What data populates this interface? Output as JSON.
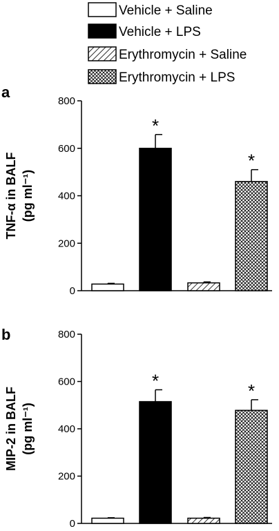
{
  "legend": [
    {
      "label": "Vehicle + Saline",
      "pattern": "white"
    },
    {
      "label": "Vehicle + LPS",
      "pattern": "black"
    },
    {
      "label": "Erythromycin + Saline",
      "pattern": "diagonal"
    },
    {
      "label": "Erythromycin + LPS",
      "pattern": "crosshatch"
    }
  ],
  "chart_data": [
    {
      "type": "bar",
      "panel": "a",
      "ylabel_main": "TNF-α in BALF",
      "ylabel_unit": "(pg ml⁻¹)",
      "categories": [
        "Vehicle + Saline",
        "Vehicle + LPS",
        "Erythromycin + Saline",
        "Erythromycin + LPS"
      ],
      "values": [
        28,
        600,
        33,
        460
      ],
      "errors": [
        3,
        58,
        4,
        50
      ],
      "significance": [
        "",
        "*",
        "",
        "*"
      ],
      "ylim": [
        0,
        800
      ],
      "yticks": [
        "0",
        "200",
        "400",
        "600",
        "800"
      ],
      "grid": false
    },
    {
      "type": "bar",
      "panel": "b",
      "ylabel_main": "MIP-2 in BALF",
      "ylabel_unit": "(pg ml⁻¹)",
      "categories": [
        "Vehicle + Saline",
        "Vehicle + LPS",
        "Erythromycin + Saline",
        "Erythromycin + LPS"
      ],
      "values": [
        22,
        515,
        22,
        478
      ],
      "errors": [
        2,
        50,
        3,
        45
      ],
      "significance": [
        "",
        "*",
        "",
        "*"
      ],
      "ylim": [
        0,
        800
      ],
      "yticks": [
        "0",
        "200",
        "400",
        "600",
        "800"
      ],
      "grid": false
    }
  ]
}
